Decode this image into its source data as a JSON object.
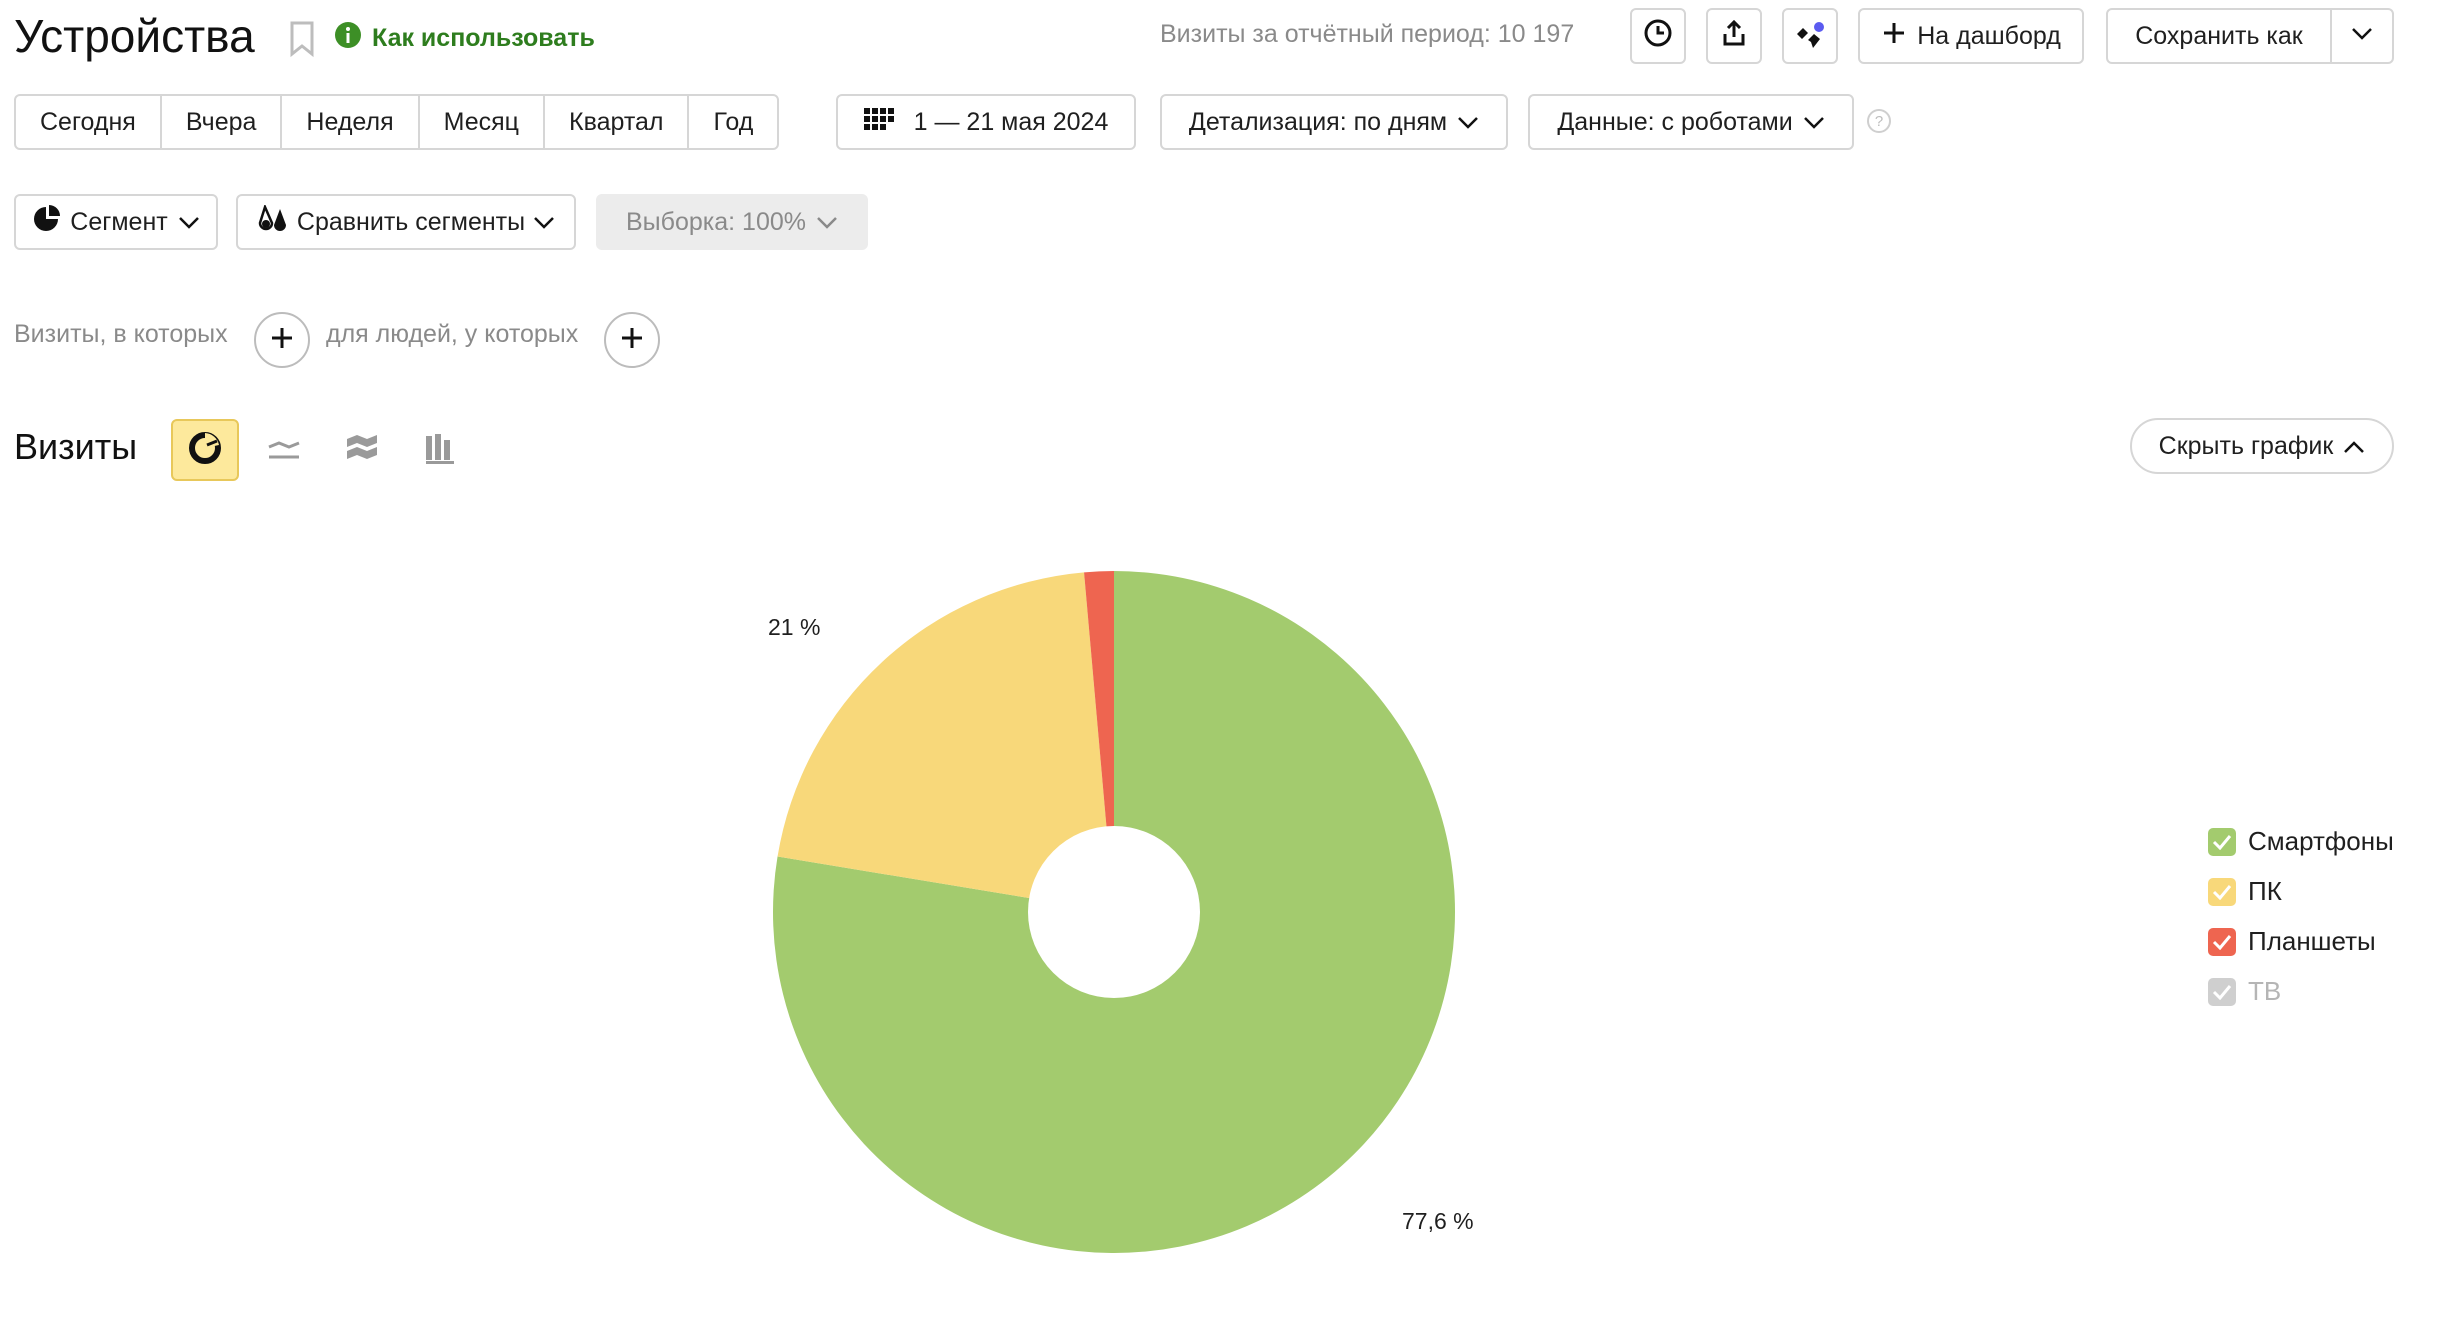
{
  "header": {
    "title": "Устройства",
    "howto_label": "Как использовать",
    "visits_total": "Визиты за отчётный период: 10 197",
    "dashboard_label": "На дашборд",
    "save_as_label": "Сохранить как"
  },
  "period": {
    "presets": [
      "Сегодня",
      "Вчера",
      "Неделя",
      "Месяц",
      "Квартал",
      "Год"
    ],
    "date_range": "1 — 21 мая 2024",
    "detail_label": "Детализация: по дням",
    "data_label": "Данные: с роботами"
  },
  "segments": {
    "segment_label": "Сегмент",
    "compare_label": "Сравнить сегменты",
    "sample_label": "Выборка: 100%"
  },
  "filters": {
    "visits_label": "Визиты, в которых",
    "people_label": "для людей, у которых"
  },
  "chart_section": {
    "title": "Визиты",
    "hide_label": "Скрыть график"
  },
  "chart_data": {
    "type": "pie",
    "donut": true,
    "categories": [
      "Смартфоны",
      "ПК",
      "Планшеты",
      "ТВ"
    ],
    "values": [
      77.6,
      21,
      1.4,
      0
    ],
    "colors": [
      "#a3cb6e",
      "#f8d87a",
      "#ee6550",
      "#c4c4c4"
    ],
    "legend_enabled": [
      true,
      true,
      true,
      false
    ],
    "value_labels": [
      "77,6 %",
      "21 %",
      "",
      ""
    ],
    "legend_position": "right"
  },
  "icons": {
    "bookmark": "bookmark-icon",
    "info": "info-icon",
    "clock": "clock-icon",
    "share": "share-icon",
    "feedback": "quote-icon",
    "plus": "plus-icon",
    "calendar": "calendar-icon",
    "pie": "pie-chart-icon",
    "line": "line-chart-icon",
    "area": "area-chart-icon",
    "bar": "bar-chart-icon"
  }
}
